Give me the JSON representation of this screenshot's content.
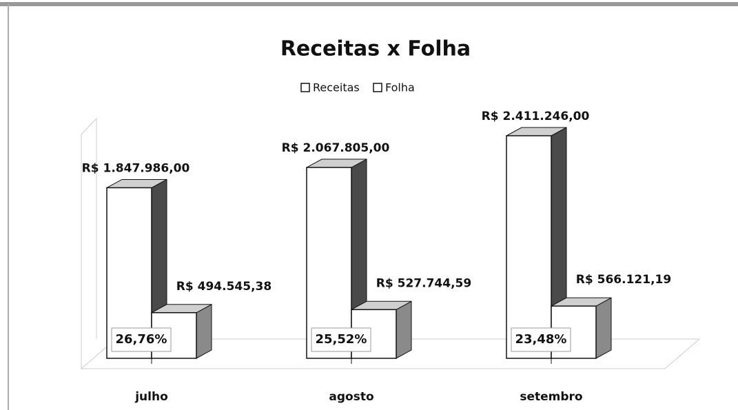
{
  "chart_data": {
    "type": "bar3d",
    "title": "Receitas x Folha",
    "categories": [
      "julho",
      "agosto",
      "setembro"
    ],
    "series": [
      {
        "name": "Receitas",
        "color": "#ffffff",
        "values": [
          1847986,
          2067805,
          2411246
        ],
        "value_labels": [
          "R$ 1.847.986,00",
          "R$ 2.067.805,00",
          "R$ 2.411.246,00"
        ]
      },
      {
        "name": "Folha",
        "color": "#ffffff",
        "values": [
          494545.38,
          527744.59,
          566121.19
        ],
        "value_labels": [
          "R$ 494.545,38",
          "R$ 527.744,59",
          "R$ 566.121,19"
        ]
      }
    ],
    "annotations": [
      "26,76%",
      "25,52%",
      "23,48%"
    ],
    "legend": "top"
  }
}
